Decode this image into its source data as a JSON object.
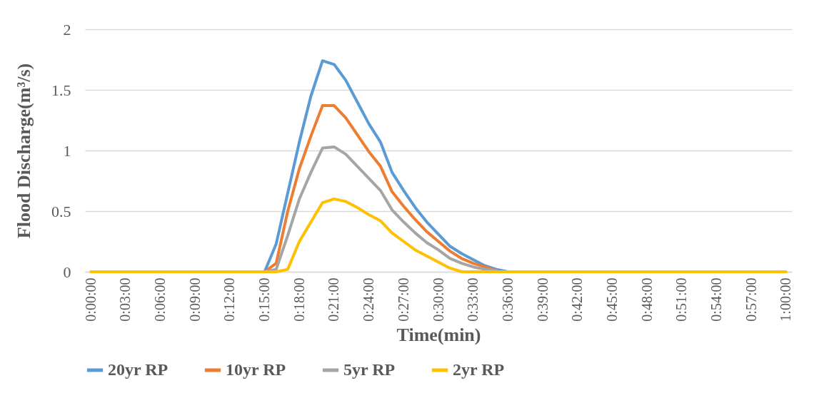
{
  "chart_data": {
    "type": "line",
    "xlabel": "Time(min)",
    "ylabel": "Flood Discharge(m³/s)",
    "categories": [
      "0:00:00",
      null,
      null,
      "0:03:00",
      null,
      null,
      "0:06:00",
      null,
      null,
      "0:09:00",
      null,
      null,
      "0:12:00",
      null,
      null,
      "0:15:00",
      null,
      null,
      "0:18:00",
      null,
      null,
      "0:21:00",
      null,
      null,
      "0:24:00",
      null,
      null,
      "0:27:00",
      null,
      null,
      "0:30:00",
      null,
      null,
      "0:33:00",
      null,
      null,
      "0:36:00",
      null,
      null,
      "0:39:00",
      null,
      null,
      "0:42:00",
      null,
      null,
      "0:45:00",
      null,
      null,
      "0:48:00",
      null,
      null,
      "0:51:00",
      null,
      null,
      "0:54:00",
      null,
      null,
      "0:57:00",
      null,
      null,
      "1:00:00"
    ],
    "series": [
      {
        "name": "20yr RP",
        "color": "#5b9bd5",
        "values": [
          null,
          null,
          null,
          null,
          null,
          null,
          null,
          null,
          null,
          null,
          null,
          null,
          null,
          null,
          null,
          0,
          0.23,
          0.65,
          1.07,
          1.45,
          1.74,
          1.71,
          1.58,
          1.4,
          1.22,
          1.07,
          0.82,
          0.67,
          0.53,
          0.41,
          0.31,
          0.21,
          0.15,
          0.1,
          0.05,
          0.02,
          0,
          null,
          null,
          null,
          null,
          null,
          null,
          null,
          null,
          null,
          null,
          null,
          null,
          null,
          null,
          null,
          null,
          null,
          null,
          null,
          null,
          null,
          null,
          null,
          null
        ]
      },
      {
        "name": "10yr RP",
        "color": "#ed7d31",
        "values": [
          null,
          null,
          null,
          null,
          null,
          null,
          null,
          null,
          null,
          null,
          null,
          null,
          null,
          null,
          null,
          0,
          0.07,
          0.5,
          0.85,
          1.12,
          1.37,
          1.37,
          1.27,
          1.13,
          0.99,
          0.87,
          0.66,
          0.54,
          0.43,
          0.33,
          0.25,
          0.17,
          0.11,
          0.07,
          0.04,
          0.01,
          null,
          null,
          null,
          null,
          null,
          null,
          null,
          null,
          null,
          null,
          null,
          null,
          null,
          null,
          null,
          null,
          null,
          null,
          null,
          null,
          null,
          null,
          null,
          null,
          null
        ]
      },
      {
        "name": "5yr RP",
        "color": "#a5a5a5",
        "values": [
          null,
          null,
          null,
          null,
          null,
          null,
          null,
          null,
          null,
          null,
          null,
          null,
          null,
          null,
          null,
          0,
          0.02,
          0.3,
          0.6,
          0.82,
          1.02,
          1.03,
          0.97,
          0.87,
          0.77,
          0.67,
          0.51,
          0.41,
          0.32,
          0.24,
          0.18,
          0.11,
          0.07,
          0.04,
          0.02,
          0.01,
          null,
          null,
          null,
          null,
          null,
          null,
          null,
          null,
          null,
          null,
          null,
          null,
          null,
          null,
          null,
          null,
          null,
          null,
          null,
          null,
          null,
          null,
          null,
          null,
          null
        ]
      },
      {
        "name": "2yr RP",
        "color": "#ffc000",
        "values": [
          0,
          0,
          0,
          0,
          0,
          0,
          0,
          0,
          0,
          0,
          0,
          0,
          0,
          0,
          0,
          0,
          0,
          0.02,
          0.25,
          0.41,
          0.57,
          0.6,
          0.58,
          0.53,
          0.47,
          0.42,
          0.32,
          0.25,
          0.18,
          0.13,
          0.08,
          0.03,
          0,
          0,
          0,
          0,
          0,
          0,
          0,
          0,
          0,
          0,
          0,
          0,
          0,
          0,
          0,
          0,
          0,
          0,
          0,
          0,
          0,
          0,
          0,
          0,
          0,
          0,
          0,
          0,
          0
        ]
      }
    ],
    "ylim": [
      0,
      2
    ],
    "yticks": [
      0,
      0.5,
      1,
      1.5,
      2
    ],
    "grid": "y",
    "legend": "bottom",
    "marker": "none",
    "line_style": "solid"
  }
}
